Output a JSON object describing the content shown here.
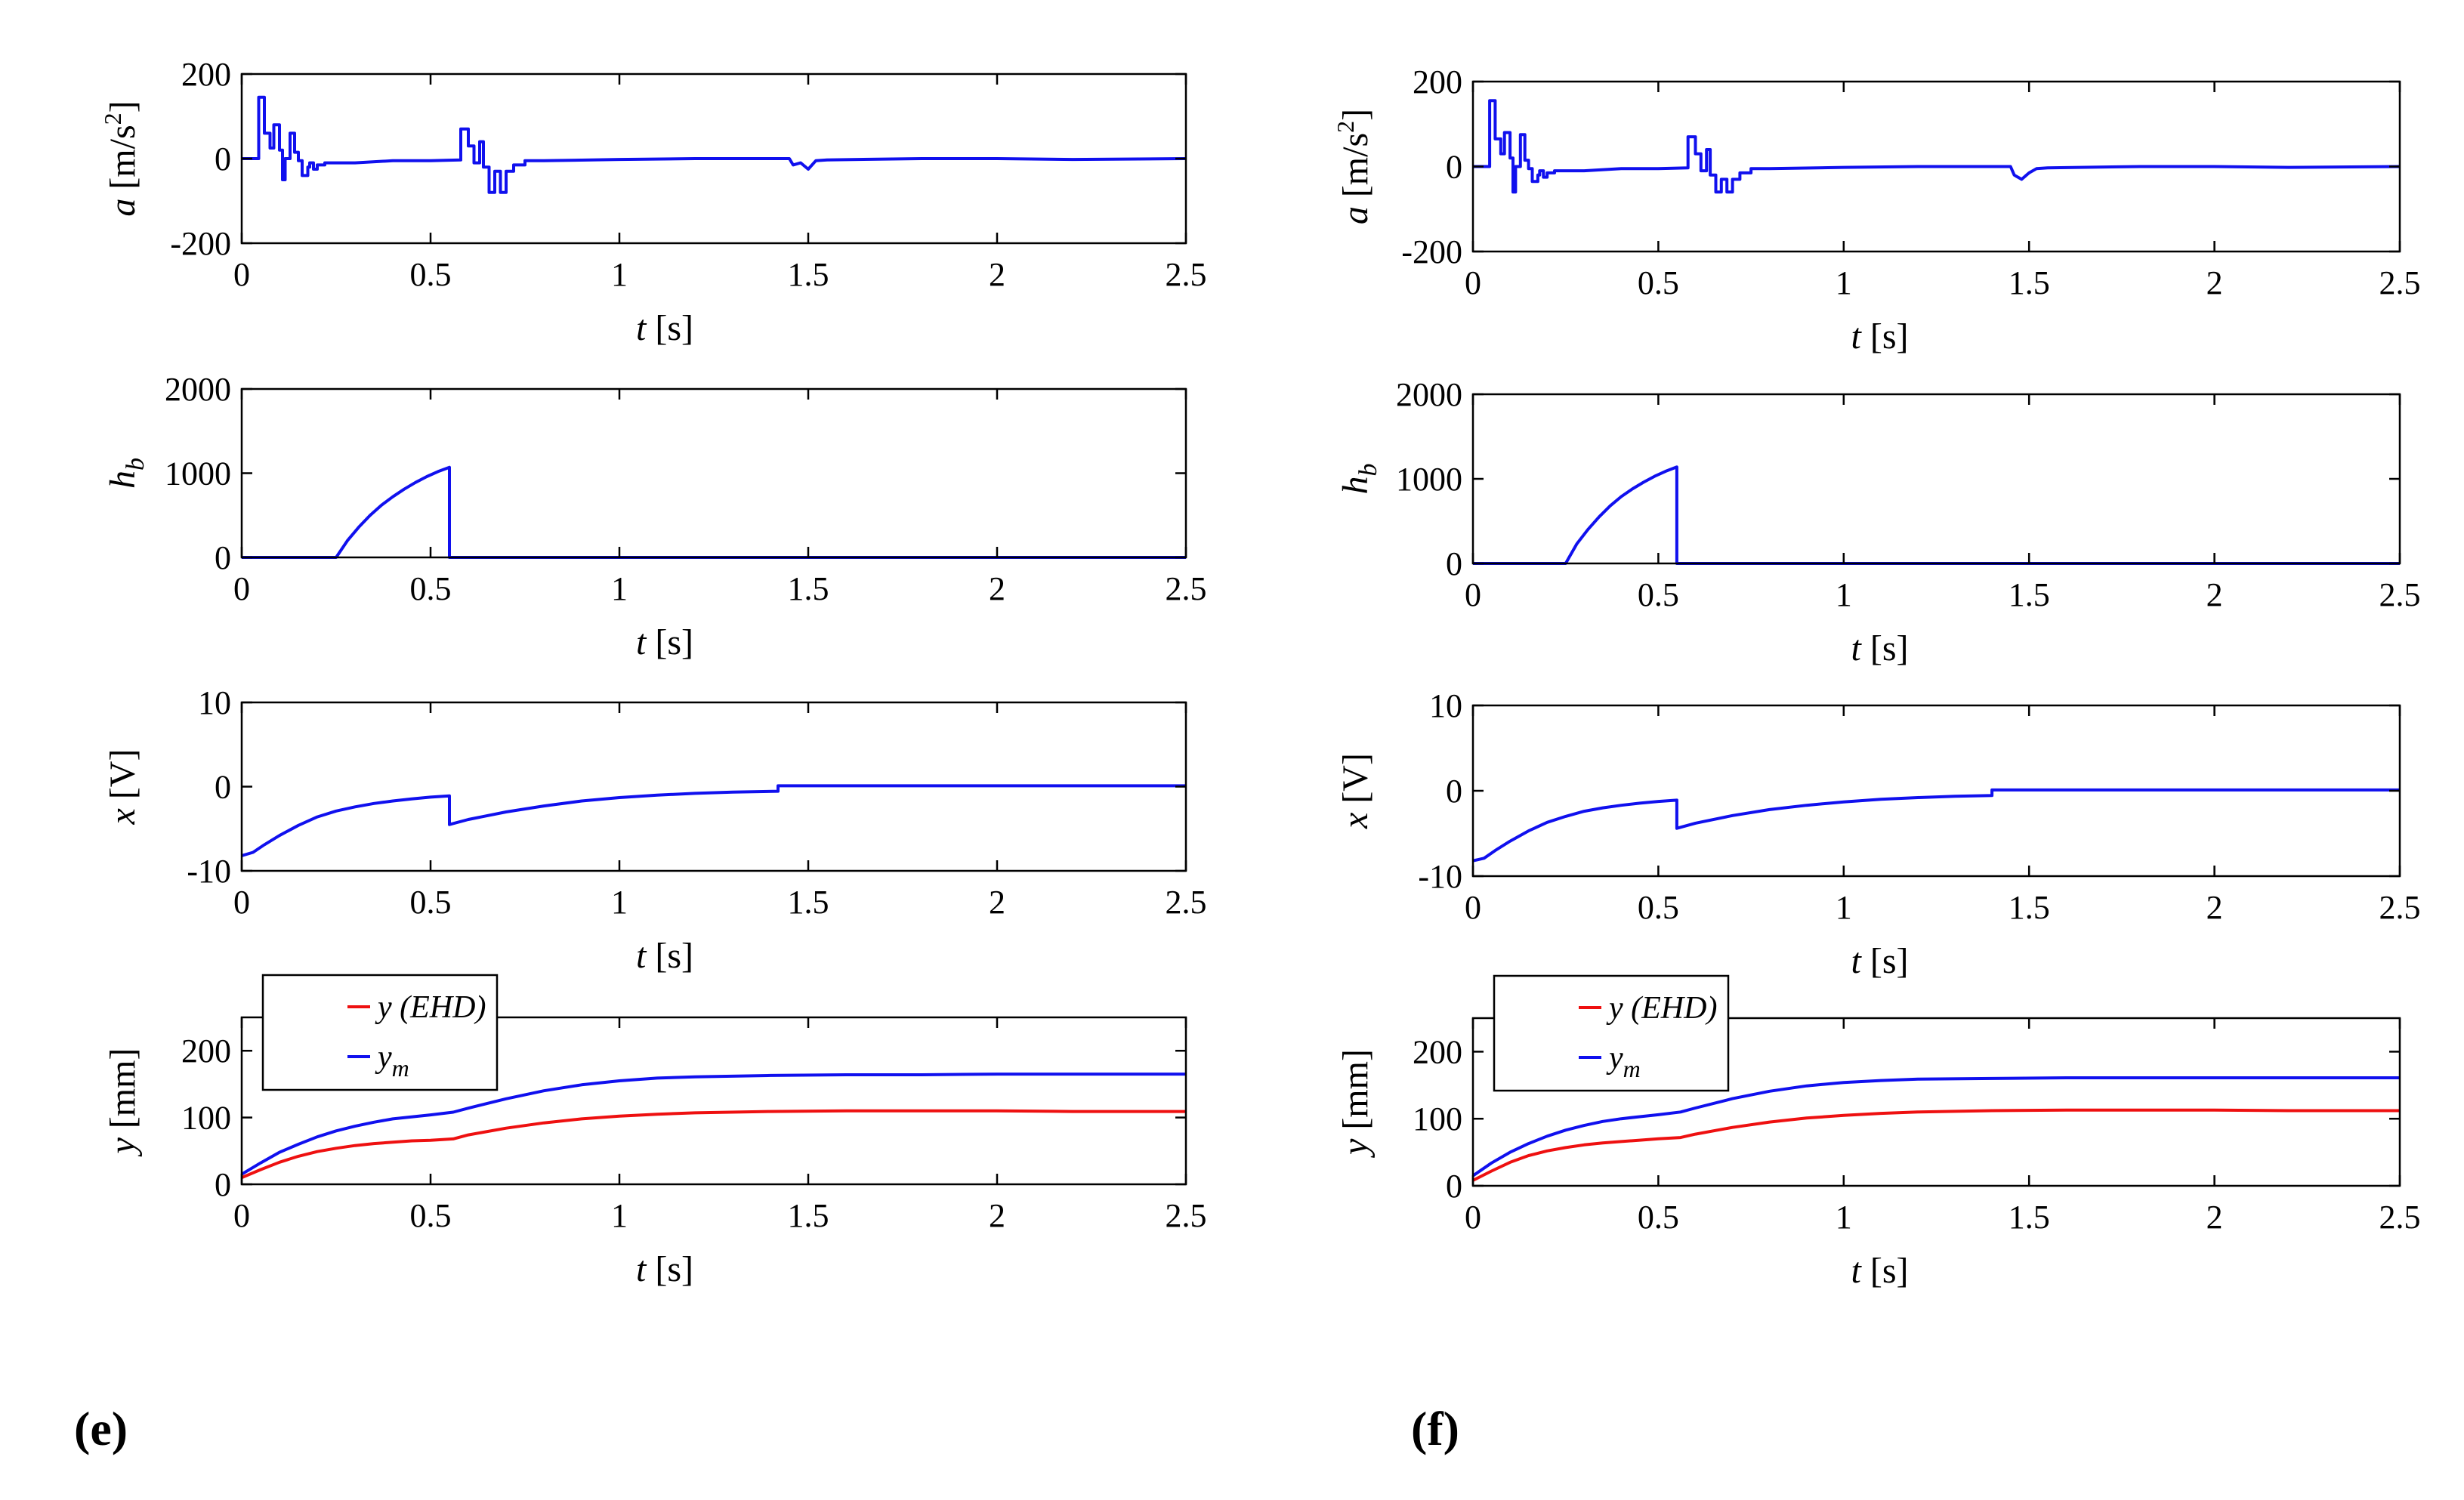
{
  "panel_labels": {
    "left": "(e)",
    "right": "(f)"
  },
  "colors": {
    "blue": "#1010ee",
    "red": "#ee1010",
    "axis": "#000000"
  },
  "chart_data": [
    {
      "type": "line",
      "panel": "e",
      "row": 0,
      "xlabel_var": "t",
      "xlabel_unit": " [s]",
      "ylabel_var": "a",
      "ylabel_unit": " [m/s",
      "ylabel_sup": "2",
      "ylabel_close": "]",
      "xlim": [
        0,
        2.5
      ],
      "ylim": [
        -200,
        200
      ],
      "xticks": [
        0,
        0.5,
        1,
        1.5,
        2,
        2.5
      ],
      "xtick_labels": [
        "0",
        "0.5",
        "1",
        "1.5",
        "2",
        "2.5"
      ],
      "yticks": [
        -200,
        0,
        200
      ],
      "ytick_labels": [
        "-200",
        "0",
        "200"
      ],
      "series": [
        {
          "name": "a",
          "color": "#1010ee",
          "step": true,
          "x": [
            0,
            0.045,
            0.045,
            0.06,
            0.06,
            0.075,
            0.075,
            0.085,
            0.085,
            0.1,
            0.1,
            0.108,
            0.108,
            0.115,
            0.115,
            0.128,
            0.128,
            0.14,
            0.14,
            0.15,
            0.15,
            0.16,
            0.16,
            0.175,
            0.175,
            0.18,
            0.18,
            0.19,
            0.19,
            0.2,
            0.2,
            0.22,
            0.22,
            0.3,
            0.4,
            0.5,
            0.58,
            0.58,
            0.6,
            0.6,
            0.615,
            0.615,
            0.63,
            0.63,
            0.64,
            0.64,
            0.655,
            0.655,
            0.67,
            0.67,
            0.685,
            0.685,
            0.7,
            0.7,
            0.72,
            0.72,
            0.75,
            0.75,
            0.8,
            1.0,
            1.2,
            1.45,
            1.46,
            1.46,
            1.48,
            1.48,
            1.5,
            1.5,
            1.52,
            1.52,
            1.55,
            1.8,
            2.0,
            2.2,
            2.5
          ],
          "y": [
            0,
            0,
            145,
            145,
            60,
            60,
            25,
            25,
            80,
            80,
            20,
            20,
            -50,
            -50,
            0,
            0,
            60,
            60,
            15,
            15,
            -5,
            -5,
            -40,
            -40,
            -20,
            -20,
            -10,
            -10,
            -25,
            -25,
            -15,
            -15,
            -10,
            -10,
            -5,
            -5,
            -3,
            70,
            70,
            30,
            30,
            -10,
            -10,
            40,
            40,
            -20,
            -20,
            -80,
            -80,
            -30,
            -30,
            -80,
            -80,
            -30,
            -30,
            -15,
            -15,
            -5,
            -5,
            -2,
            0,
            0,
            -15,
            -15,
            -10,
            -10,
            -25,
            -25,
            -5,
            -5,
            -3,
            0,
            0,
            -2,
            0
          ]
        }
      ]
    },
    {
      "type": "line",
      "panel": "e",
      "row": 1,
      "xlabel_var": "t",
      "xlabel_unit": " [s]",
      "ylabel_var": "h",
      "ylabel_sub": "b",
      "xlim": [
        0,
        2.5
      ],
      "ylim": [
        0,
        2000
      ],
      "xticks": [
        0,
        0.5,
        1,
        1.5,
        2,
        2.5
      ],
      "xtick_labels": [
        "0",
        "0.5",
        "1",
        "1.5",
        "2",
        "2.5"
      ],
      "yticks": [
        0,
        1000,
        2000
      ],
      "ytick_labels": [
        "0",
        "1000",
        "2000"
      ],
      "series": [
        {
          "name": "h_b",
          "color": "#1010ee",
          "x": [
            0,
            0.25,
            0.28,
            0.31,
            0.34,
            0.37,
            0.4,
            0.43,
            0.46,
            0.49,
            0.52,
            0.55,
            0.55,
            2.5
          ],
          "y": [
            0,
            0,
            200,
            360,
            500,
            620,
            720,
            810,
            890,
            960,
            1020,
            1070,
            0,
            0
          ]
        }
      ]
    },
    {
      "type": "line",
      "panel": "e",
      "row": 2,
      "xlabel_var": "t",
      "xlabel_unit": " [s]",
      "ylabel_var": "x",
      "ylabel_unit": " [V]",
      "xlim": [
        0,
        2.5
      ],
      "ylim": [
        -10,
        10
      ],
      "xticks": [
        0,
        0.5,
        1,
        1.5,
        2,
        2.5
      ],
      "xtick_labels": [
        "0",
        "0.5",
        "1",
        "1.5",
        "2",
        "2.5"
      ],
      "yticks": [
        -10,
        0,
        10
      ],
      "ytick_labels": [
        "-10",
        "0",
        "10"
      ],
      "series": [
        {
          "name": "x",
          "color": "#1010ee",
          "x": [
            0,
            0.03,
            0.06,
            0.1,
            0.15,
            0.2,
            0.25,
            0.3,
            0.35,
            0.4,
            0.45,
            0.5,
            0.55,
            0.55,
            0.6,
            0.7,
            0.8,
            0.9,
            1.0,
            1.1,
            1.2,
            1.3,
            1.42,
            1.42,
            1.6,
            1.8,
            2.0,
            2.2,
            2.5
          ],
          "y": [
            -8.2,
            -7.8,
            -6.9,
            -5.8,
            -4.6,
            -3.6,
            -2.9,
            -2.4,
            -2.0,
            -1.7,
            -1.45,
            -1.25,
            -1.1,
            -4.5,
            -3.9,
            -3.0,
            -2.3,
            -1.7,
            -1.3,
            -1.0,
            -0.8,
            -0.65,
            -0.55,
            0.1,
            0.1,
            0.1,
            0.1,
            0.1,
            0.1
          ]
        }
      ]
    },
    {
      "type": "line",
      "panel": "e",
      "row": 3,
      "xlabel_var": "t",
      "xlabel_unit": " [s]",
      "ylabel_var": "y",
      "ylabel_unit": " [mm]",
      "xlim": [
        0,
        2.5
      ],
      "ylim": [
        0,
        250
      ],
      "xticks": [
        0,
        0.5,
        1,
        1.5,
        2,
        2.5
      ],
      "xtick_labels": [
        "0",
        "0.5",
        "1",
        "1.5",
        "2",
        "2.5"
      ],
      "yticks": [
        0,
        100,
        200
      ],
      "ytick_labels": [
        "0",
        "100",
        "200"
      ],
      "legend": [
        {
          "label": "y (EHD)",
          "var": "y",
          "sub": "",
          "color": "#ee1010"
        },
        {
          "label": "y_m",
          "var": "y",
          "sub": "m",
          "color": "#1010ee"
        }
      ],
      "series": [
        {
          "name": "y (EHD)",
          "color": "#ee1010",
          "x": [
            0,
            0.05,
            0.1,
            0.15,
            0.2,
            0.25,
            0.3,
            0.35,
            0.4,
            0.45,
            0.5,
            0.56,
            0.6,
            0.7,
            0.8,
            0.9,
            1.0,
            1.1,
            1.2,
            1.4,
            1.6,
            1.8,
            2.0,
            2.2,
            2.5
          ],
          "y": [
            10,
            22,
            33,
            42,
            49,
            54,
            58,
            61,
            63,
            65,
            66,
            68,
            74,
            84,
            92,
            98,
            102,
            105,
            107,
            109,
            110,
            110,
            110,
            109,
            109
          ]
        },
        {
          "name": "y_m",
          "color": "#1010ee",
          "x": [
            0,
            0.05,
            0.1,
            0.15,
            0.2,
            0.25,
            0.3,
            0.35,
            0.4,
            0.45,
            0.5,
            0.56,
            0.6,
            0.7,
            0.8,
            0.9,
            1.0,
            1.1,
            1.2,
            1.4,
            1.6,
            1.8,
            2.0,
            2.2,
            2.5
          ],
          "y": [
            15,
            32,
            48,
            60,
            71,
            80,
            87,
            93,
            98,
            101,
            104,
            108,
            114,
            128,
            140,
            149,
            155,
            159,
            161,
            163,
            164,
            164,
            165,
            165,
            165
          ]
        }
      ]
    },
    {
      "type": "line",
      "panel": "f",
      "row": 0,
      "xlabel_var": "t",
      "xlabel_unit": " [s]",
      "ylabel_var": "a",
      "ylabel_unit": " [m/s",
      "ylabel_sup": "2",
      "ylabel_close": "]",
      "xlim": [
        0,
        2.5
      ],
      "ylim": [
        -200,
        200
      ],
      "xticks": [
        0,
        0.5,
        1,
        1.5,
        2,
        2.5
      ],
      "xtick_labels": [
        "0",
        "0.5",
        "1",
        "1.5",
        "2",
        "2.5"
      ],
      "yticks": [
        -200,
        0,
        200
      ],
      "ytick_labels": [
        "-200",
        "0",
        "200"
      ],
      "series": [
        {
          "name": "a",
          "color": "#1010ee",
          "step": true,
          "x": [
            0,
            0.045,
            0.045,
            0.06,
            0.06,
            0.075,
            0.075,
            0.085,
            0.085,
            0.1,
            0.1,
            0.108,
            0.108,
            0.115,
            0.115,
            0.128,
            0.128,
            0.14,
            0.14,
            0.15,
            0.15,
            0.16,
            0.16,
            0.175,
            0.175,
            0.18,
            0.18,
            0.19,
            0.19,
            0.2,
            0.2,
            0.22,
            0.22,
            0.3,
            0.4,
            0.5,
            0.58,
            0.58,
            0.6,
            0.6,
            0.615,
            0.615,
            0.63,
            0.63,
            0.64,
            0.64,
            0.655,
            0.655,
            0.67,
            0.67,
            0.685,
            0.685,
            0.7,
            0.7,
            0.72,
            0.72,
            0.75,
            0.75,
            0.8,
            1.0,
            1.2,
            1.45,
            1.46,
            1.46,
            1.48,
            1.48,
            1.5,
            1.5,
            1.52,
            1.52,
            1.55,
            1.8,
            2.0,
            2.2,
            2.5
          ],
          "y": [
            0,
            0,
            155,
            155,
            65,
            65,
            30,
            30,
            80,
            80,
            20,
            20,
            -60,
            -60,
            0,
            0,
            75,
            75,
            15,
            15,
            -5,
            -5,
            -35,
            -35,
            -20,
            -20,
            -10,
            -10,
            -25,
            -25,
            -15,
            -15,
            -10,
            -10,
            -5,
            -5,
            -3,
            70,
            70,
            30,
            30,
            -10,
            -10,
            40,
            40,
            -20,
            -20,
            -60,
            -60,
            -30,
            -30,
            -60,
            -60,
            -30,
            -30,
            -15,
            -15,
            -5,
            -5,
            -2,
            0,
            0,
            -20,
            -20,
            -30,
            -30,
            -15,
            -15,
            -5,
            -5,
            -3,
            0,
            0,
            -2,
            0
          ]
        }
      ]
    },
    {
      "type": "line",
      "panel": "f",
      "row": 1,
      "xlabel_var": "t",
      "xlabel_unit": " [s]",
      "ylabel_var": "h",
      "ylabel_sub": "b",
      "xlim": [
        0,
        2.5
      ],
      "ylim": [
        0,
        2000
      ],
      "xticks": [
        0,
        0.5,
        1,
        1.5,
        2,
        2.5
      ],
      "xtick_labels": [
        "0",
        "0.5",
        "1",
        "1.5",
        "2",
        "2.5"
      ],
      "yticks": [
        0,
        1000,
        2000
      ],
      "ytick_labels": [
        "0",
        "1000",
        "2000"
      ],
      "series": [
        {
          "name": "h_b",
          "color": "#1010ee",
          "x": [
            0,
            0.25,
            0.28,
            0.31,
            0.34,
            0.37,
            0.4,
            0.43,
            0.46,
            0.49,
            0.52,
            0.55,
            0.55,
            2.5
          ],
          "y": [
            0,
            0,
            230,
            400,
            550,
            680,
            790,
            880,
            960,
            1030,
            1090,
            1140,
            0,
            0
          ]
        }
      ]
    },
    {
      "type": "line",
      "panel": "f",
      "row": 2,
      "xlabel_var": "t",
      "xlabel_unit": " [s]",
      "ylabel_var": "x",
      "ylabel_unit": " [V]",
      "xlim": [
        0,
        2.5
      ],
      "ylim": [
        -10,
        10
      ],
      "xticks": [
        0,
        0.5,
        1,
        1.5,
        2,
        2.5
      ],
      "xtick_labels": [
        "0",
        "0.5",
        "1",
        "1.5",
        "2",
        "2.5"
      ],
      "yticks": [
        -10,
        0,
        10
      ],
      "ytick_labels": [
        "-10",
        "0",
        "10"
      ],
      "series": [
        {
          "name": "x",
          "color": "#1010ee",
          "x": [
            0,
            0.03,
            0.06,
            0.1,
            0.15,
            0.2,
            0.25,
            0.3,
            0.35,
            0.4,
            0.45,
            0.5,
            0.55,
            0.55,
            0.6,
            0.7,
            0.8,
            0.9,
            1.0,
            1.1,
            1.2,
            1.3,
            1.4,
            1.4,
            1.6,
            1.8,
            2.0,
            2.2,
            2.5
          ],
          "y": [
            -8.2,
            -7.9,
            -7.0,
            -5.9,
            -4.7,
            -3.7,
            -3.0,
            -2.4,
            -2.0,
            -1.7,
            -1.45,
            -1.25,
            -1.1,
            -4.4,
            -3.8,
            -2.9,
            -2.2,
            -1.7,
            -1.3,
            -1.0,
            -0.8,
            -0.65,
            -0.55,
            0.1,
            0.1,
            0.1,
            0.1,
            0.1,
            0.1
          ]
        }
      ]
    },
    {
      "type": "line",
      "panel": "f",
      "row": 3,
      "xlabel_var": "t",
      "xlabel_unit": " [s]",
      "ylabel_var": "y",
      "ylabel_unit": " [mm]",
      "xlim": [
        0,
        2.5
      ],
      "ylim": [
        0,
        250
      ],
      "xticks": [
        0,
        0.5,
        1,
        1.5,
        2,
        2.5
      ],
      "xtick_labels": [
        "0",
        "0.5",
        "1",
        "1.5",
        "2",
        "2.5"
      ],
      "yticks": [
        0,
        100,
        200
      ],
      "ytick_labels": [
        "0",
        "100",
        "200"
      ],
      "legend": [
        {
          "label": "y (EHD)",
          "var": "y",
          "sub": "",
          "color": "#ee1010"
        },
        {
          "label": "y_m",
          "var": "y",
          "sub": "m",
          "color": "#1010ee"
        }
      ],
      "series": [
        {
          "name": "y (EHD)",
          "color": "#ee1010",
          "x": [
            0,
            0.05,
            0.1,
            0.15,
            0.2,
            0.25,
            0.3,
            0.35,
            0.4,
            0.45,
            0.5,
            0.56,
            0.6,
            0.7,
            0.8,
            0.9,
            1.0,
            1.1,
            1.2,
            1.4,
            1.6,
            1.8,
            2.0,
            2.2,
            2.5
          ],
          "y": [
            8,
            22,
            35,
            45,
            52,
            57,
            61,
            64,
            66,
            68,
            70,
            72,
            77,
            87,
            95,
            101,
            105,
            108,
            110,
            112,
            113,
            113,
            113,
            112,
            112
          ]
        },
        {
          "name": "y_m",
          "color": "#1010ee",
          "x": [
            0,
            0.05,
            0.1,
            0.15,
            0.2,
            0.25,
            0.3,
            0.35,
            0.4,
            0.45,
            0.5,
            0.56,
            0.6,
            0.7,
            0.8,
            0.9,
            1.0,
            1.1,
            1.2,
            1.4,
            1.6,
            1.8,
            2.0,
            2.2,
            2.5
          ],
          "y": [
            15,
            34,
            50,
            63,
            74,
            83,
            90,
            96,
            100,
            103,
            106,
            110,
            116,
            130,
            141,
            149,
            154,
            157,
            159,
            160,
            161,
            161,
            161,
            161,
            161
          ]
        }
      ]
    }
  ]
}
